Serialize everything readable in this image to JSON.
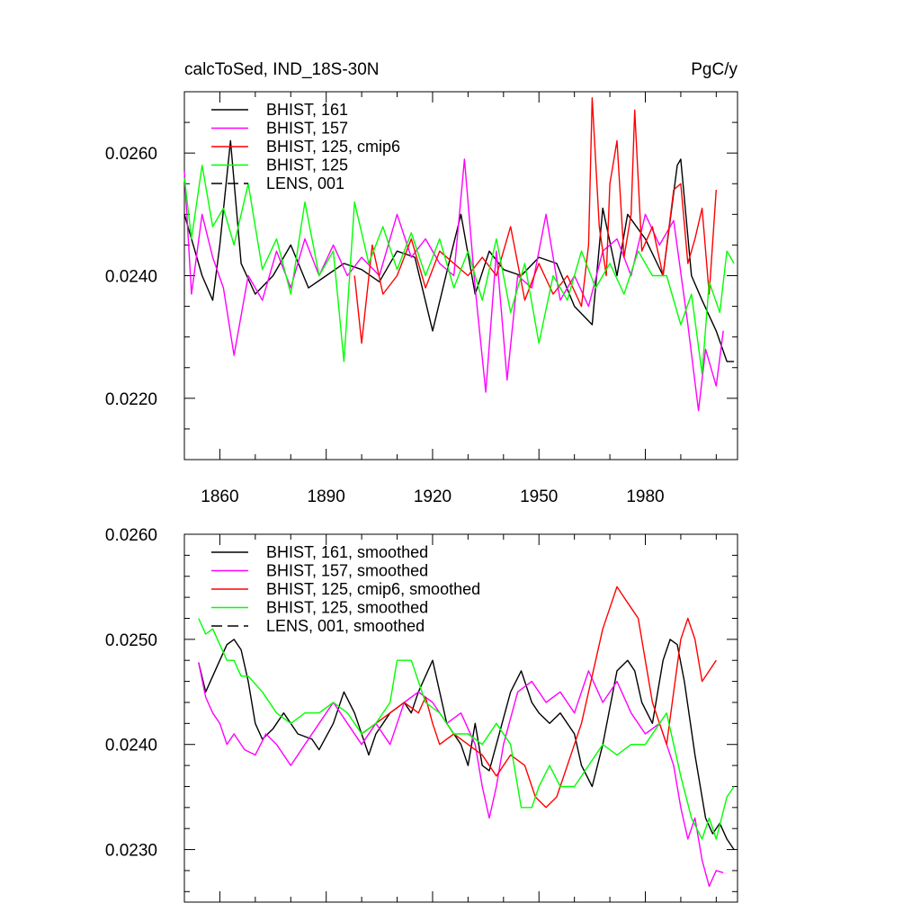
{
  "chart_data": [
    {
      "type": "line",
      "title": "calcToSed, IND_18S-30N",
      "units": "PgC/y",
      "xlim": [
        1850,
        2006
      ],
      "ylim": [
        0.021,
        0.027
      ],
      "x_ticks": [
        1860,
        1890,
        1920,
        1950,
        1980
      ],
      "x_tick_labels": [
        "1860",
        "1890",
        "1920",
        "1950",
        "1980"
      ],
      "y_ticks": [
        0.022,
        0.024,
        0.026
      ],
      "y_tick_labels": [
        "0.0220",
        "0.0240",
        "0.0260"
      ],
      "y_minor_ticks": [
        0.021,
        0.0215,
        0.0225,
        0.023,
        0.0235,
        0.0245,
        0.025,
        0.0255,
        0.0265,
        0.027
      ],
      "legend": [
        {
          "label": "BHIST, 161",
          "color": "#000000",
          "dash": "solid"
        },
        {
          "label": "BHIST, 157",
          "color": "#ff00ff",
          "dash": "solid"
        },
        {
          "label": "BHIST, 125, cmip6",
          "color": "#ff0000",
          "dash": "solid"
        },
        {
          "label": "BHIST, 125",
          "color": "#00ff00",
          "dash": "solid"
        },
        {
          "label": "LENS, 001",
          "color": "#000000",
          "dash": "dashed"
        }
      ],
      "series": [
        {
          "name": "BHIST, 161",
          "color": "#000000",
          "x": [
            1850,
            1855,
            1858,
            1860,
            1863,
            1866,
            1870,
            1875,
            1880,
            1885,
            1890,
            1895,
            1900,
            1905,
            1910,
            1915,
            1920,
            1925,
            1928,
            1932,
            1936,
            1940,
            1945,
            1950,
            1955,
            1960,
            1965,
            1968,
            1972,
            1975,
            1980,
            1985,
            1989,
            1990,
            1993,
            1996,
            2000,
            2003,
            2005
          ],
          "y": [
            0.025,
            0.024,
            0.0236,
            0.0245,
            0.0262,
            0.0242,
            0.0237,
            0.024,
            0.0245,
            0.0238,
            0.024,
            0.0242,
            0.0241,
            0.0239,
            0.0244,
            0.0243,
            0.0231,
            0.0243,
            0.025,
            0.0237,
            0.0244,
            0.0241,
            0.024,
            0.0243,
            0.0242,
            0.0235,
            0.0232,
            0.0251,
            0.024,
            0.025,
            0.0246,
            0.024,
            0.0258,
            0.0259,
            0.024,
            0.0236,
            0.0231,
            0.0226,
            0.0226
          ]
        },
        {
          "name": "BHIST, 157",
          "color": "#ff00ff",
          "x": [
            1850,
            1852,
            1855,
            1858,
            1861,
            1864,
            1868,
            1872,
            1876,
            1880,
            1884,
            1888,
            1892,
            1896,
            1900,
            1905,
            1910,
            1914,
            1918,
            1922,
            1926,
            1929,
            1932,
            1935,
            1938,
            1941,
            1944,
            1948,
            1952,
            1956,
            1960,
            1964,
            1968,
            1972,
            1976,
            1980,
            1984,
            1988,
            1992,
            1995,
            1997,
            2000,
            2002
          ],
          "y": [
            0.0257,
            0.0237,
            0.025,
            0.0243,
            0.0238,
            0.0227,
            0.024,
            0.0236,
            0.0244,
            0.0238,
            0.0246,
            0.024,
            0.0245,
            0.024,
            0.0243,
            0.024,
            0.025,
            0.0243,
            0.0246,
            0.0242,
            0.024,
            0.0259,
            0.0238,
            0.0221,
            0.0244,
            0.0223,
            0.024,
            0.0238,
            0.025,
            0.0236,
            0.024,
            0.0235,
            0.0244,
            0.0246,
            0.024,
            0.025,
            0.0245,
            0.0249,
            0.0232,
            0.0218,
            0.0228,
            0.0222,
            0.0231
          ]
        },
        {
          "name": "BHIST, 125, cmip6",
          "color": "#ff0000",
          "x": [
            1898,
            1900,
            1903,
            1906,
            1910,
            1914,
            1918,
            1922,
            1926,
            1930,
            1934,
            1938,
            1942,
            1946,
            1950,
            1954,
            1958,
            1962,
            1964,
            1965,
            1967,
            1969,
            1970,
            1972,
            1974,
            1976,
            1977,
            1979,
            1982,
            1985,
            1988,
            1990,
            1992,
            1994,
            1996,
            1998,
            2000
          ],
          "y": [
            0.024,
            0.0229,
            0.0245,
            0.0237,
            0.024,
            0.0246,
            0.0238,
            0.0244,
            0.0242,
            0.024,
            0.0243,
            0.024,
            0.0248,
            0.0236,
            0.0242,
            0.0237,
            0.024,
            0.0235,
            0.0245,
            0.0269,
            0.0248,
            0.024,
            0.0255,
            0.0262,
            0.0243,
            0.025,
            0.0267,
            0.0244,
            0.0248,
            0.024,
            0.0254,
            0.0255,
            0.0242,
            0.0246,
            0.0251,
            0.0237,
            0.0254
          ]
        },
        {
          "name": "BHIST, 125",
          "color": "#00ff00",
          "x": [
            1850,
            1852,
            1855,
            1858,
            1861,
            1864,
            1868,
            1872,
            1876,
            1880,
            1884,
            1888,
            1892,
            1895,
            1898,
            1902,
            1906,
            1910,
            1914,
            1918,
            1922,
            1926,
            1930,
            1934,
            1938,
            1942,
            1946,
            1950,
            1954,
            1958,
            1962,
            1966,
            1970,
            1974,
            1978,
            1982,
            1986,
            1990,
            1993,
            1996,
            1998,
            2001,
            2003,
            2005
          ],
          "y": [
            0.0256,
            0.0246,
            0.0258,
            0.0248,
            0.0251,
            0.0245,
            0.0255,
            0.0241,
            0.0246,
            0.0237,
            0.0252,
            0.024,
            0.0244,
            0.0226,
            0.0252,
            0.0242,
            0.0248,
            0.0241,
            0.0247,
            0.024,
            0.0246,
            0.0238,
            0.0244,
            0.0236,
            0.0246,
            0.0234,
            0.0242,
            0.0229,
            0.024,
            0.0236,
            0.0244,
            0.0238,
            0.0242,
            0.0237,
            0.0244,
            0.024,
            0.024,
            0.0232,
            0.0237,
            0.0224,
            0.0239,
            0.0234,
            0.0244,
            0.0242
          ]
        }
      ]
    },
    {
      "type": "line",
      "title": "",
      "units": "",
      "xlim": [
        1850,
        2006
      ],
      "ylim": [
        0.0225,
        0.026
      ],
      "x_ticks": [
        1860,
        1890,
        1920,
        1950,
        1980
      ],
      "x_tick_labels": [],
      "y_ticks": [
        0.023,
        0.024,
        0.025,
        0.026
      ],
      "y_tick_labels": [
        "0.0230",
        "0.0240",
        "0.0250",
        "0.0260"
      ],
      "y_minor_ticks": [
        0.0226,
        0.0228,
        0.0232,
        0.0234,
        0.0236,
        0.0238,
        0.0242,
        0.0244,
        0.0246,
        0.0248,
        0.0252,
        0.0254,
        0.0256,
        0.0258
      ],
      "legend": [
        {
          "label": "BHIST, 161, smoothed",
          "color": "#000000",
          "dash": "solid"
        },
        {
          "label": "BHIST, 157, smoothed",
          "color": "#ff00ff",
          "dash": "solid"
        },
        {
          "label": "BHIST, 125, cmip6, smoothed",
          "color": "#ff0000",
          "dash": "solid"
        },
        {
          "label": "BHIST, 125, smoothed",
          "color": "#00ff00",
          "dash": "solid"
        },
        {
          "label": "LENS, 001, smoothed",
          "color": "#000000",
          "dash": "dashed"
        }
      ],
      "series": [
        {
          "name": "BHIST, 161, smoothed",
          "color": "#000000",
          "x": [
            1854,
            1856,
            1858,
            1860,
            1862,
            1864,
            1866,
            1868,
            1870,
            1872,
            1875,
            1878,
            1882,
            1886,
            1888,
            1892,
            1895,
            1898,
            1902,
            1904,
            1908,
            1912,
            1914,
            1916,
            1920,
            1924,
            1928,
            1930,
            1932,
            1934,
            1936,
            1938,
            1942,
            1945,
            1948,
            1950,
            1953,
            1956,
            1960,
            1962,
            1965,
            1968,
            1972,
            1975,
            1977,
            1979,
            1982,
            1985,
            1987,
            1989,
            1991,
            1994,
            1997,
            1999,
            2001,
            2003,
            2005
          ],
          "y": [
            0.02478,
            0.0245,
            0.02465,
            0.0248,
            0.02495,
            0.025,
            0.0249,
            0.0246,
            0.0242,
            0.02405,
            0.02415,
            0.0243,
            0.0241,
            0.02405,
            0.02395,
            0.0242,
            0.0245,
            0.0243,
            0.0239,
            0.0241,
            0.0243,
            0.0244,
            0.0243,
            0.0245,
            0.0248,
            0.0242,
            0.024,
            0.0238,
            0.0242,
            0.0238,
            0.02375,
            0.024,
            0.0245,
            0.0247,
            0.0244,
            0.0243,
            0.0242,
            0.0243,
            0.0241,
            0.0238,
            0.0236,
            0.024,
            0.0247,
            0.0248,
            0.0247,
            0.0244,
            0.0242,
            0.0248,
            0.025,
            0.02495,
            0.0246,
            0.0239,
            0.0233,
            0.02315,
            0.02325,
            0.0231,
            0.023
          ]
        },
        {
          "name": "BHIST, 157, smoothed",
          "color": "#ff00ff",
          "x": [
            1854,
            1856,
            1858,
            1860,
            1862,
            1864,
            1867,
            1870,
            1873,
            1876,
            1880,
            1884,
            1888,
            1892,
            1896,
            1900,
            1904,
            1908,
            1912,
            1916,
            1920,
            1924,
            1928,
            1932,
            1934,
            1936,
            1938,
            1940,
            1944,
            1948,
            1952,
            1956,
            1960,
            1964,
            1968,
            1972,
            1976,
            1980,
            1984,
            1986,
            1988,
            1990,
            1992,
            1994,
            1996,
            1998,
            2000,
            2002
          ],
          "y": [
            0.02478,
            0.02445,
            0.0243,
            0.0242,
            0.024,
            0.0241,
            0.02395,
            0.0239,
            0.0241,
            0.024,
            0.0238,
            0.024,
            0.0242,
            0.0244,
            0.0242,
            0.024,
            0.0242,
            0.024,
            0.0244,
            0.0245,
            0.0244,
            0.0242,
            0.0243,
            0.024,
            0.0236,
            0.0233,
            0.0236,
            0.024,
            0.0245,
            0.0246,
            0.0244,
            0.0245,
            0.0243,
            0.0247,
            0.0244,
            0.0246,
            0.0243,
            0.0241,
            0.0242,
            0.024,
            0.0238,
            0.0234,
            0.0231,
            0.0233,
            0.0229,
            0.02265,
            0.0228,
            0.02278
          ]
        },
        {
          "name": "BHIST, 125, cmip6, smoothed",
          "color": "#ff0000",
          "x": [
            1900,
            1904,
            1908,
            1912,
            1916,
            1918,
            1920,
            1922,
            1926,
            1930,
            1934,
            1938,
            1942,
            1946,
            1949,
            1952,
            1955,
            1958,
            1962,
            1966,
            1968,
            1970,
            1972,
            1974,
            1976,
            1978,
            1980,
            1982,
            1984,
            1986,
            1988,
            1990,
            1992,
            1994,
            1996,
            1998,
            2000
          ],
          "y": [
            0.0241,
            0.0242,
            0.0243,
            0.0244,
            0.0243,
            0.02445,
            0.0242,
            0.024,
            0.0241,
            0.024,
            0.0239,
            0.0237,
            0.0239,
            0.0238,
            0.0235,
            0.0234,
            0.0235,
            0.0238,
            0.0242,
            0.0248,
            0.0251,
            0.0253,
            0.0255,
            0.0254,
            0.0253,
            0.0252,
            0.0248,
            0.0244,
            0.0242,
            0.024,
            0.0245,
            0.025,
            0.0252,
            0.025,
            0.0246,
            0.0247,
            0.0248
          ]
        },
        {
          "name": "BHIST, 125, smoothed",
          "color": "#00ff00",
          "x": [
            1854,
            1856,
            1858,
            1860,
            1862,
            1864,
            1866,
            1868,
            1872,
            1876,
            1880,
            1884,
            1888,
            1892,
            1896,
            1900,
            1904,
            1908,
            1910,
            1914,
            1918,
            1922,
            1926,
            1930,
            1934,
            1938,
            1942,
            1945,
            1948,
            1950,
            1953,
            1956,
            1960,
            1964,
            1968,
            1972,
            1976,
            1980,
            1984,
            1986,
            1988,
            1990,
            1993,
            1996,
            1998,
            2000,
            2003,
            2005
          ],
          "y": [
            0.0252,
            0.02505,
            0.0251,
            0.02495,
            0.0248,
            0.0248,
            0.02465,
            0.02465,
            0.0245,
            0.0243,
            0.0242,
            0.0243,
            0.0243,
            0.0244,
            0.0243,
            0.0241,
            0.0242,
            0.0244,
            0.0248,
            0.0248,
            0.0244,
            0.0243,
            0.0241,
            0.0241,
            0.024,
            0.0242,
            0.024,
            0.0234,
            0.0234,
            0.0236,
            0.0238,
            0.0236,
            0.0236,
            0.0238,
            0.024,
            0.0239,
            0.024,
            0.024,
            0.0242,
            0.0243,
            0.024,
            0.0237,
            0.0233,
            0.0231,
            0.0233,
            0.0231,
            0.0235,
            0.0236
          ]
        }
      ]
    }
  ]
}
